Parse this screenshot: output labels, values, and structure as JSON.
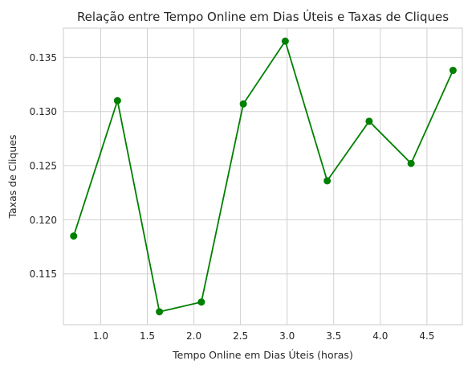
{
  "chart_data": {
    "type": "line",
    "title": "Relação entre Tempo Online em Dias Úteis e Taxas de Cliques",
    "xlabel": "Tempo Online em Dias Úteis (horas)",
    "ylabel": "Taxas de Cliques",
    "xlim": [
      0.6,
      4.88
    ],
    "ylim": [
      0.1103,
      0.1377
    ],
    "xticks": [
      1.0,
      1.5,
      2.0,
      2.5,
      3.0,
      3.5,
      4.0,
      4.5
    ],
    "xtick_labels": [
      "1.0",
      "1.5",
      "2.0",
      "2.5",
      "3.0",
      "3.5",
      "4.0",
      "4.5"
    ],
    "yticks": [
      0.115,
      0.12,
      0.125,
      0.13,
      0.135
    ],
    "ytick_labels": [
      "0.115",
      "0.120",
      "0.125",
      "0.130",
      "0.135"
    ],
    "grid": true,
    "series": [
      {
        "color": "#008000",
        "marker": "circle",
        "x": [
          0.71,
          1.18,
          1.63,
          2.08,
          2.53,
          2.98,
          3.43,
          3.88,
          4.33,
          4.78
        ],
        "y": [
          0.1185,
          0.131,
          0.1115,
          0.1124,
          0.1307,
          0.1365,
          0.1236,
          0.1291,
          0.1252,
          0.1338
        ]
      }
    ]
  }
}
